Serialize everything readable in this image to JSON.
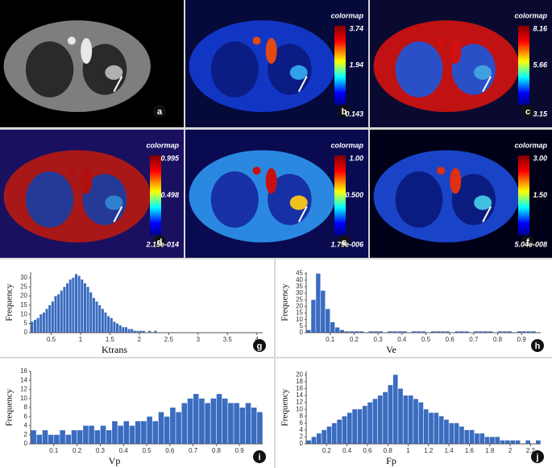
{
  "images": [
    {
      "label": "a"
    },
    {
      "label": "b",
      "colormap": {
        "title": "colormap",
        "max": "3.74",
        "mid": "1.94",
        "min": "0.143"
      }
    },
    {
      "label": "c",
      "colormap": {
        "title": "colormap",
        "max": "8.16",
        "mid": "5.66",
        "min": "3.15"
      }
    },
    {
      "label": "d",
      "colormap": {
        "title": "colormap",
        "max": "0.995",
        "mid": "0.498",
        "min": "2.15e-014"
      }
    },
    {
      "label": "e",
      "colormap": {
        "title": "colormap",
        "max": "1.00",
        "mid": "0.500",
        "min": "1.79e-006"
      }
    },
    {
      "label": "f",
      "colormap": {
        "title": "colormap",
        "max": "3.00",
        "mid": "1.50",
        "min": "5.04e-008"
      }
    }
  ],
  "chart_data": [
    {
      "type": "histogram",
      "panel_label": "g",
      "xlabel": "Ktrans",
      "ylabel": "Frequency",
      "color": "#3a6cc0",
      "bins": [
        0.15,
        0.2,
        0.25,
        0.3,
        0.35,
        0.4,
        0.45,
        0.5,
        0.55,
        0.6,
        0.65,
        0.7,
        0.75,
        0.8,
        0.85,
        0.9,
        0.95,
        1,
        1.05,
        1.1,
        1.15,
        1.2,
        1.25,
        1.3,
        1.35,
        1.4,
        1.45,
        1.5,
        1.55,
        1.6,
        1.65,
        1.7,
        1.75,
        1.8,
        1.85,
        1.9,
        1.95,
        2,
        2.05,
        2.1,
        2.15,
        2.2,
        2.25,
        2.3
      ],
      "counts": [
        6,
        7,
        8,
        10,
        11,
        13,
        15,
        17,
        20,
        21,
        23,
        25,
        27,
        29,
        30,
        32,
        31,
        29,
        27,
        25,
        22,
        19,
        17,
        15,
        13,
        11,
        9,
        8,
        6,
        5,
        4,
        3,
        3,
        2,
        2,
        1,
        1,
        1,
        1,
        0,
        1,
        0,
        1
      ],
      "xlim": [
        0.15,
        4.1
      ],
      "ylim": [
        0,
        33
      ],
      "xticks": [
        0.5,
        1,
        1.5,
        2,
        2.5,
        3,
        3.5,
        4
      ],
      "yticks": [
        0,
        5,
        10,
        15,
        20,
        25,
        30
      ]
    },
    {
      "type": "histogram",
      "panel_label": "h",
      "xlabel": "Ve",
      "ylabel": "Frequency",
      "color": "#3a6cc0",
      "bins": [
        0,
        0.02,
        0.04,
        0.06,
        0.08,
        0.1,
        0.12,
        0.14,
        0.16,
        0.18,
        0.2,
        0.22,
        0.24,
        0.26,
        0.28,
        0.3,
        0.32,
        0.34,
        0.36,
        0.38,
        0.4,
        0.42,
        0.44,
        0.46,
        0.48,
        0.5,
        0.52,
        0.54,
        0.56,
        0.58,
        0.6,
        0.62,
        0.64,
        0.66,
        0.68,
        0.7,
        0.72,
        0.74,
        0.76,
        0.78,
        0.8,
        0.82,
        0.84,
        0.86,
        0.88,
        0.9,
        0.92,
        0.94,
        0.96,
        0.98
      ],
      "counts": [
        2,
        25,
        45,
        32,
        18,
        8,
        4,
        2,
        1,
        1,
        1,
        1,
        0,
        1,
        1,
        1,
        0,
        1,
        1,
        1,
        1,
        0,
        1,
        1,
        1,
        0,
        1,
        1,
        1,
        1,
        0,
        1,
        1,
        1,
        0,
        1,
        1,
        1,
        1,
        0,
        1,
        1,
        1,
        0,
        1,
        1,
        1,
        1,
        0
      ],
      "xlim": [
        0,
        0.98
      ],
      "ylim": [
        0,
        46
      ],
      "xticks": [
        0.1,
        0.2,
        0.3,
        0.4,
        0.5,
        0.6,
        0.7,
        0.8,
        0.9
      ],
      "yticks": [
        0,
        5,
        10,
        15,
        20,
        25,
        30,
        35,
        40,
        45
      ]
    },
    {
      "type": "histogram",
      "panel_label": "i",
      "xlabel": "Vp",
      "ylabel": "Frequency",
      "color": "#3a6cc0",
      "bins": [
        0,
        0.025,
        0.05,
        0.075,
        0.1,
        0.125,
        0.15,
        0.175,
        0.2,
        0.225,
        0.25,
        0.275,
        0.3,
        0.325,
        0.35,
        0.375,
        0.4,
        0.425,
        0.45,
        0.475,
        0.5,
        0.525,
        0.55,
        0.575,
        0.6,
        0.625,
        0.65,
        0.675,
        0.7,
        0.725,
        0.75,
        0.775,
        0.8,
        0.825,
        0.85,
        0.875,
        0.9,
        0.925,
        0.95,
        0.975,
        1
      ],
      "counts": [
        3,
        2,
        3,
        2,
        2,
        3,
        2,
        3,
        3,
        4,
        4,
        3,
        4,
        3,
        5,
        4,
        5,
        4,
        5,
        5,
        6,
        5,
        7,
        6,
        8,
        7,
        9,
        10,
        11,
        10,
        9,
        10,
        11,
        10,
        9,
        9,
        8,
        9,
        8,
        7
      ],
      "xlim": [
        0,
        1
      ],
      "ylim": [
        0,
        16
      ],
      "xticks": [
        0.1,
        0.2,
        0.3,
        0.4,
        0.5,
        0.6,
        0.7,
        0.8,
        0.9
      ],
      "yticks": [
        0,
        2,
        4,
        6,
        8,
        10,
        12,
        14,
        16
      ]
    },
    {
      "type": "histogram",
      "panel_label": "j",
      "xlabel": "Fp",
      "ylabel": "Frequency",
      "color": "#3a6cc0",
      "bins": [
        0,
        0.05,
        0.1,
        0.15,
        0.2,
        0.25,
        0.3,
        0.35,
        0.4,
        0.45,
        0.5,
        0.55,
        0.6,
        0.65,
        0.7,
        0.75,
        0.8,
        0.85,
        0.9,
        0.95,
        1,
        1.05,
        1.1,
        1.15,
        1.2,
        1.25,
        1.3,
        1.35,
        1.4,
        1.45,
        1.5,
        1.55,
        1.6,
        1.65,
        1.7,
        1.75,
        1.8,
        1.85,
        1.9,
        1.95,
        2,
        2.05,
        2.1,
        2.15,
        2.2,
        2.25,
        2.3
      ],
      "counts": [
        1,
        2,
        3,
        4,
        5,
        6,
        7,
        8,
        9,
        10,
        10,
        11,
        12,
        13,
        14,
        15,
        17,
        20,
        16,
        14,
        14,
        13,
        12,
        10,
        9,
        9,
        8,
        7,
        6,
        6,
        5,
        4,
        4,
        3,
        3,
        2,
        2,
        2,
        1,
        1,
        1,
        1,
        0,
        1,
        0,
        1
      ],
      "xlim": [
        0,
        2.3
      ],
      "ylim": [
        0,
        21
      ],
      "xticks": [
        0.2,
        0.4,
        0.6,
        0.8,
        1,
        1.2,
        1.4,
        1.6,
        1.8,
        2,
        2.2
      ],
      "yticks": [
        0,
        2,
        4,
        6,
        8,
        10,
        12,
        14,
        16,
        18,
        20
      ]
    }
  ]
}
